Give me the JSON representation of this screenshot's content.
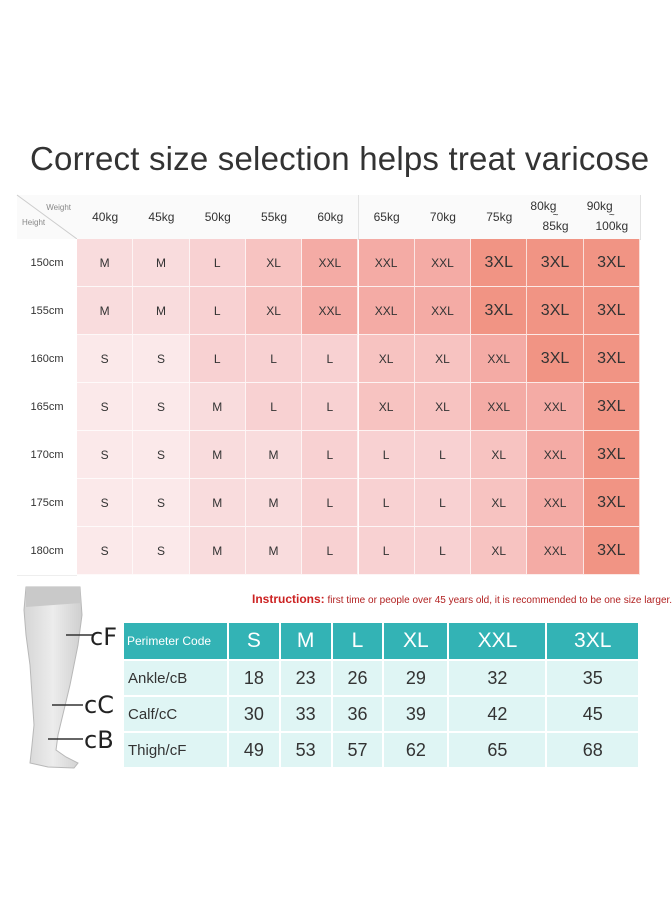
{
  "title": "Correct size selection helps treat varicose",
  "chart": {
    "corner_weight": "Weight",
    "corner_height": "Height",
    "weights": [
      "40kg",
      "45kg",
      "50kg",
      "55kg",
      "60kg",
      "65kg",
      "70kg",
      "75kg",
      "80kg ~ 85kg",
      "90kg ~ 100kg"
    ],
    "heights": [
      "150cm",
      "155cm",
      "160cm",
      "165cm",
      "170cm",
      "175cm",
      "180cm"
    ],
    "sizes": [
      [
        "M",
        "M",
        "L",
        "XL",
        "XXL",
        "XXL",
        "XXL",
        "3XL",
        "3XL",
        "3XL"
      ],
      [
        "M",
        "M",
        "L",
        "XL",
        "XXL",
        "XXL",
        "XXL",
        "3XL",
        "3XL",
        "3XL"
      ],
      [
        "S",
        "S",
        "L",
        "L",
        "L",
        "XL",
        "XL",
        "XXL",
        "3XL",
        "3XL"
      ],
      [
        "S",
        "S",
        "M",
        "L",
        "L",
        "XL",
        "XL",
        "XXL",
        "XXL",
        "3XL"
      ],
      [
        "S",
        "S",
        "M",
        "M",
        "L",
        "L",
        "L",
        "XL",
        "XXL",
        "3XL"
      ],
      [
        "S",
        "S",
        "M",
        "M",
        "L",
        "L",
        "L",
        "XL",
        "XXL",
        "3XL"
      ],
      [
        "S",
        "S",
        "M",
        "M",
        "L",
        "L",
        "L",
        "XL",
        "XXL",
        "3XL"
      ]
    ],
    "size_colors": {
      "S": "#fbe9ea",
      "M": "#f9dcdd",
      "L": "#f8d1d2",
      "XL": "#f7c3c1",
      "XXL": "#f4aba5",
      "3XL": "#f19484"
    }
  },
  "notice": {
    "label": "Instructions:",
    "text": "first time or people over 45 years old, it is recommended to be one size larger."
  },
  "leg_labels": {
    "top": "cF",
    "middle": "cC",
    "bottom": "cB"
  },
  "perimeter": {
    "header": "Perimeter Code",
    "sizes": [
      "S",
      "M",
      "L",
      "XL",
      "XXL",
      "3XL"
    ],
    "rows": [
      {
        "label": "Ankle/cB",
        "values": [
          "18",
          "23",
          "26",
          "29",
          "32",
          "35"
        ]
      },
      {
        "label": "Calf/cC",
        "values": [
          "30",
          "33",
          "36",
          "39",
          "42",
          "45"
        ]
      },
      {
        "label": "Thigh/cF",
        "values": [
          "49",
          "53",
          "57",
          "62",
          "65",
          "68"
        ]
      }
    ],
    "colors": {
      "header": "#33b3b5",
      "row": "#dff5f4"
    }
  }
}
